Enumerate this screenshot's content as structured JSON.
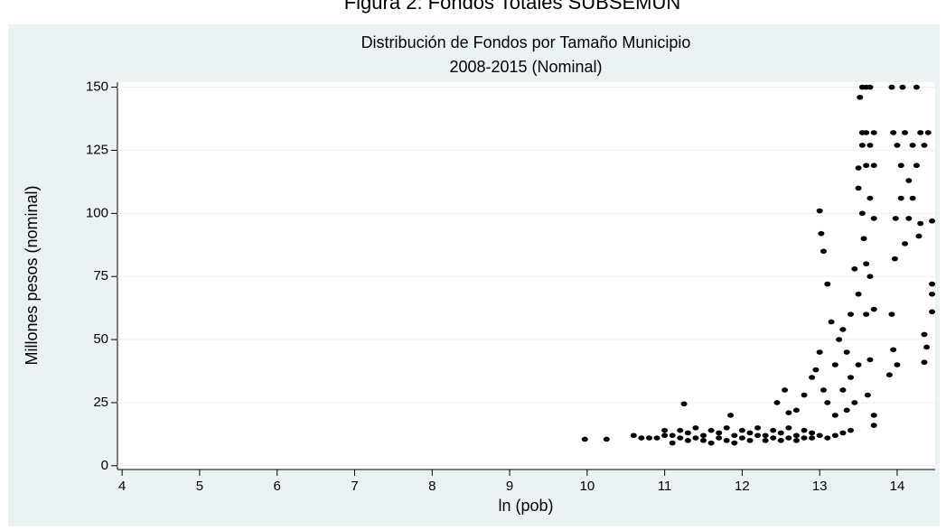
{
  "chart_data": {
    "type": "scatter",
    "caption": "Figura 2: Fondos Totales SUBSEMUN",
    "title": "Distribución  de Fondos por Tamaño Municipio",
    "subtitle": "2008-2015 (Nominal)",
    "x_label": "ln (pob)",
    "y_label": "Millones pesos (nominal)",
    "color": "#000000",
    "grid": true,
    "xlim": [
      3.94,
      14.49
    ],
    "ylim": [
      -1.5,
      152
    ],
    "xticks": [
      4,
      5,
      6,
      7,
      8,
      9,
      10,
      11,
      12,
      13,
      14
    ],
    "yticks": [
      0,
      25,
      50,
      75,
      100,
      125,
      150
    ],
    "x": [
      9.97,
      10.25,
      10.6,
      10.7,
      10.8,
      10.9,
      11.0,
      11.0,
      11.1,
      11.1,
      11.2,
      11.2,
      11.3,
      11.3,
      11.4,
      11.4,
      11.5,
      11.5,
      11.6,
      11.6,
      11.7,
      11.7,
      11.8,
      11.8,
      11.9,
      11.9,
      12.0,
      12.0,
      12.1,
      12.1,
      12.2,
      12.2,
      12.3,
      12.3,
      12.4,
      12.4,
      12.5,
      12.5,
      12.6,
      12.6,
      12.7,
      12.7,
      12.8,
      12.8,
      12.9,
      12.9,
      13.0,
      13.1,
      13.2,
      13.3,
      13.4,
      11.25,
      11.85,
      12.45,
      12.55,
      12.6,
      12.7,
      12.8,
      12.9,
      12.95,
      13.0,
      13.02,
      13.05,
      13.0,
      13.05,
      13.1,
      13.1,
      13.15,
      13.2,
      13.2,
      13.25,
      13.3,
      13.3,
      13.35,
      13.35,
      13.4,
      13.4,
      13.45,
      13.45,
      13.5,
      13.5,
      13.5,
      13.5,
      13.52,
      13.55,
      13.55,
      13.55,
      13.55,
      13.57,
      13.6,
      13.6,
      13.6,
      13.6,
      13.6,
      13.62,
      13.65,
      13.65,
      13.65,
      13.65,
      13.65,
      13.7,
      13.7,
      13.7,
      13.7,
      13.7,
      13.7,
      13.93,
      13.93,
      13.9,
      13.95,
      13.97,
      13.95,
      13.98,
      14.0,
      14.0,
      14.05,
      14.05,
      14.07,
      14.1,
      14.1,
      14.15,
      14.15,
      14.2,
      14.2,
      14.25,
      14.25,
      14.28,
      14.3,
      14.3,
      14.35,
      14.35,
      14.35,
      14.38,
      14.4,
      14.45,
      14.45,
      14.45,
      14.45
    ],
    "values": [
      10.5,
      10.5,
      12,
      11,
      11,
      11,
      12,
      14,
      9,
      12,
      11,
      14,
      10,
      13,
      11,
      15,
      10,
      12,
      14,
      9,
      11,
      13,
      10,
      15,
      12,
      9,
      11,
      14,
      10,
      13,
      12,
      15,
      10,
      12,
      11,
      14,
      10,
      13,
      11,
      15,
      10,
      12,
      11,
      14,
      11,
      13,
      12,
      11,
      12,
      13,
      14,
      24.5,
      20,
      25,
      30,
      21,
      22,
      28,
      35,
      38,
      101,
      92,
      85,
      45,
      30,
      72,
      25,
      57,
      40,
      20,
      50,
      54,
      30,
      45,
      22,
      60,
      35,
      78,
      25,
      110,
      118,
      68,
      40,
      146,
      150,
      132,
      127,
      100,
      90,
      150,
      132,
      119,
      80,
      60,
      28,
      150,
      127,
      106,
      75,
      42,
      132,
      119,
      98,
      62,
      20,
      16,
      150,
      60,
      36,
      46,
      82,
      132,
      98,
      127,
      40,
      106,
      119,
      150,
      88,
      132,
      113,
      98,
      127,
      106,
      150,
      119,
      91,
      132,
      96,
      127,
      52,
      41,
      47,
      132,
      97,
      72,
      61,
      68
    ]
  }
}
